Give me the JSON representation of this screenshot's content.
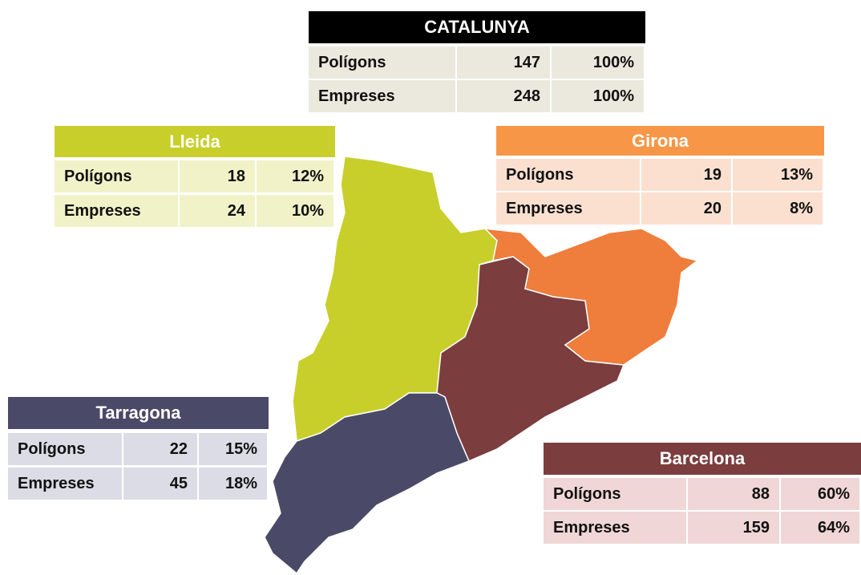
{
  "panels": [
    {
      "title": "CATALUNYA",
      "rows": [
        [
          "Polígons",
          "147",
          "100%"
        ],
        [
          "Empreses",
          "248",
          "100%"
        ]
      ]
    },
    {
      "title": "Lleida",
      "rows": [
        [
          "Polígons",
          "18",
          "12%"
        ],
        [
          "Empreses",
          "24",
          "10%"
        ]
      ]
    },
    {
      "title": "Girona",
      "rows": [
        [
          "Polígons",
          "19",
          "13%"
        ],
        [
          "Empreses",
          "20",
          "8%"
        ]
      ]
    },
    {
      "title": "Tarragona",
      "rows": [
        [
          "Polígons",
          "22",
          "15%"
        ],
        [
          "Empreses",
          "45",
          "18%"
        ]
      ]
    },
    {
      "title": "Barcelona",
      "rows": [
        [
          "Polígons",
          "88",
          "60%"
        ],
        [
          "Empreses",
          "159",
          "64%"
        ]
      ]
    }
  ]
}
